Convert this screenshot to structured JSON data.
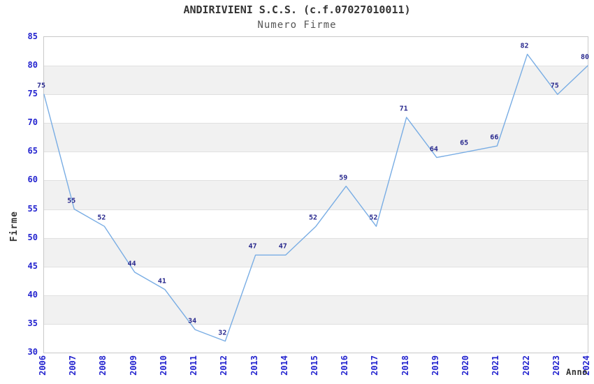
{
  "chart_data": {
    "type": "line",
    "title": "ANDIRIVIENI S.C.S. (c.f.07027010011)",
    "subtitle": "Numero Firme",
    "xlabel": "Anno",
    "ylabel": "Firme",
    "categories": [
      "2006",
      "2007",
      "2008",
      "2009",
      "2010",
      "2011",
      "2012",
      "2013",
      "2014",
      "2015",
      "2016",
      "2017",
      "2018",
      "2019",
      "2020",
      "2021",
      "2022",
      "2023",
      "2024"
    ],
    "series": [
      {
        "name": "Numero Firme",
        "values": [
          75,
          55,
          52,
          44,
          41,
          34,
          32,
          47,
          47,
          52,
          59,
          52,
          71,
          64,
          65,
          66,
          82,
          75,
          80
        ]
      }
    ],
    "ylim": [
      30,
      85
    ],
    "y_ticks": [
      85,
      80,
      75,
      70,
      65,
      60,
      55,
      50,
      45,
      40,
      35,
      30
    ],
    "grid": "horizontal-bands-alternating",
    "legend": "none",
    "data_labels": true
  },
  "colors": {
    "line": "#79ade4",
    "point_label": "#26268c",
    "tick_label": "#2323cf",
    "axis_title": "#333333",
    "title": "#333333",
    "subtitle": "#555555",
    "band": "#f1f1f1",
    "grid_line": "#e0e0e0",
    "plot_border": "#c9c9c9",
    "background": "#ffffff"
  }
}
